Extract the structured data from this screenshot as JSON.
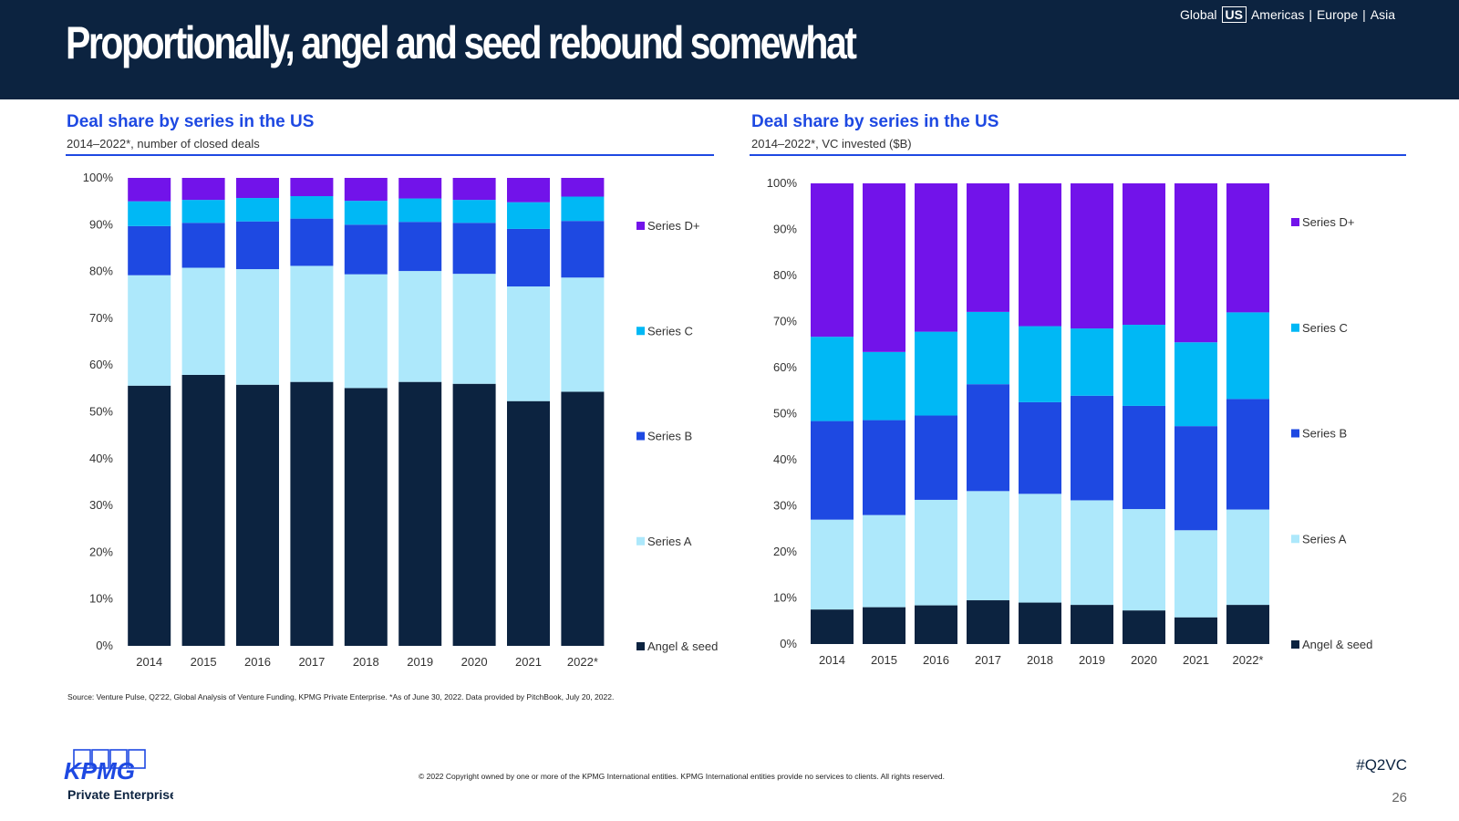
{
  "header": {
    "title": "Proportionally, angel and seed rebound somewhat",
    "region_nav": [
      {
        "label": "Global",
        "current": false
      },
      {
        "label": "US",
        "current": true
      },
      {
        "label": "Americas",
        "current": false
      },
      {
        "label": "Europe",
        "current": false
      },
      {
        "label": "Asia",
        "current": false
      }
    ]
  },
  "left_panel": {
    "title": "Deal share by series in the US",
    "subtitle": "2014–2022*, number of closed deals"
  },
  "right_panel": {
    "title": "Deal share by series in the US",
    "subtitle": "2014–2022*, VC invested ($B)"
  },
  "colors": {
    "navy": "#0c2340",
    "accent_blue": "#1e49e2",
    "angel_seed": "#0c2340",
    "series_a": "#ade8fb",
    "series_b": "#1e49e2",
    "series_c": "#00b8f5",
    "series_d": "#7213ea"
  },
  "chart_data": [
    {
      "type": "bar",
      "stacked": true,
      "title": "Deal share by series in the US",
      "subtitle": "2014–2022*, number of closed deals",
      "categories": [
        "2014",
        "2015",
        "2016",
        "2017",
        "2018",
        "2019",
        "2020",
        "2021",
        "2022*"
      ],
      "ylim": [
        0,
        100
      ],
      "yticks": [
        "0%",
        "10%",
        "20%",
        "30%",
        "40%",
        "50%",
        "60%",
        "70%",
        "80%",
        "90%",
        "100%"
      ],
      "legend_position": "right",
      "series": [
        {
          "name": "Angel & seed",
          "color": "#0c2340",
          "values": [
            55.6,
            57.9,
            55.8,
            56.4,
            55.1,
            56.4,
            56.0,
            52.3,
            54.3
          ]
        },
        {
          "name": "Series A",
          "color": "#ade8fb",
          "values": [
            23.6,
            22.9,
            24.7,
            24.8,
            24.3,
            23.7,
            23.5,
            24.5,
            24.4
          ]
        },
        {
          "name": "Series B",
          "color": "#1e49e2",
          "values": [
            10.5,
            9.6,
            10.2,
            10.1,
            10.6,
            10.5,
            10.9,
            12.3,
            12.1
          ]
        },
        {
          "name": "Series C",
          "color": "#00b8f5",
          "values": [
            5.3,
            4.9,
            5.0,
            4.8,
            5.1,
            5.0,
            4.9,
            5.7,
            5.2
          ]
        },
        {
          "name": "Series D+",
          "color": "#7213ea",
          "values": [
            5.0,
            4.7,
            4.3,
            3.9,
            4.9,
            4.4,
            4.7,
            5.2,
            4.0
          ]
        }
      ]
    },
    {
      "type": "bar",
      "stacked": true,
      "title": "Deal share by series in the US",
      "subtitle": "2014–2022*, VC invested ($B)",
      "categories": [
        "2014",
        "2015",
        "2016",
        "2017",
        "2018",
        "2019",
        "2020",
        "2021",
        "2022*"
      ],
      "ylim": [
        0,
        100
      ],
      "yticks": [
        "0%",
        "10%",
        "20%",
        "30%",
        "40%",
        "50%",
        "60%",
        "70%",
        "80%",
        "90%",
        "100%"
      ],
      "legend_position": "right",
      "series": [
        {
          "name": "Angel & seed",
          "color": "#0c2340",
          "values": [
            7.5,
            8.0,
            8.4,
            9.5,
            9.0,
            8.5,
            7.3,
            5.8,
            8.5
          ]
        },
        {
          "name": "Series A",
          "color": "#ade8fb",
          "values": [
            19.5,
            20.0,
            22.9,
            23.7,
            23.6,
            22.7,
            22.0,
            18.9,
            20.7
          ]
        },
        {
          "name": "Series B",
          "color": "#1e49e2",
          "values": [
            21.4,
            20.6,
            18.3,
            23.2,
            19.9,
            22.7,
            22.4,
            22.6,
            24.0
          ]
        },
        {
          "name": "Series C",
          "color": "#00b8f5",
          "values": [
            18.3,
            14.8,
            18.2,
            15.7,
            16.5,
            14.6,
            17.6,
            18.2,
            18.8
          ]
        },
        {
          "name": "Series D+",
          "color": "#7213ea",
          "values": [
            33.3,
            36.6,
            32.2,
            27.9,
            31.0,
            31.5,
            30.7,
            34.5,
            28.0
          ]
        }
      ]
    }
  ],
  "footer": {
    "source": "Source: Venture Pulse, Q2'22, Global Analysis of Venture Funding, KPMG Private Enterprise. *As of June 30, 2022. Data provided by PitchBook, July 20, 2022.",
    "copyright": "© 2022 Copyright owned by one or more of the KPMG International entities. KPMG International entities provide no services to clients. All rights reserved.",
    "hashtag": "#Q2VC",
    "page_number": "26",
    "logo_text": "KPMG",
    "logo_subtext": "Private Enterprise"
  }
}
